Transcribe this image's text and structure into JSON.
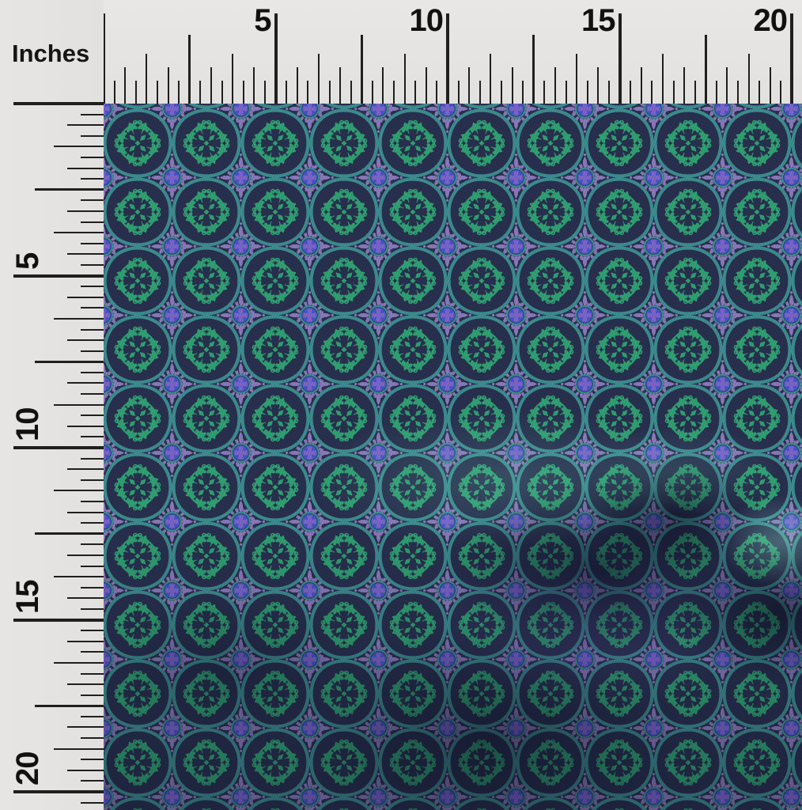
{
  "photo": {
    "subject": "fabric swatch with quatrefoil tile print and measuring rulers"
  },
  "ruler": {
    "unit_label": "Inches",
    "top_labels": [
      "5",
      "10",
      "15",
      "20"
    ],
    "left_labels": [
      "5",
      "10",
      "15",
      "20"
    ]
  },
  "colors": {
    "ruler_bg": "#e4e2e0",
    "tick": "#1f1f1f",
    "label_text": "#111111",
    "fabric_navy": "#28304f",
    "fabric_teal": "#3d8e91",
    "fabric_green": "#30a273",
    "fabric_lavender": "#8b7abc",
    "fabric_blue": "#4753cb",
    "fabric_cross_purple": "#7d66c9"
  }
}
